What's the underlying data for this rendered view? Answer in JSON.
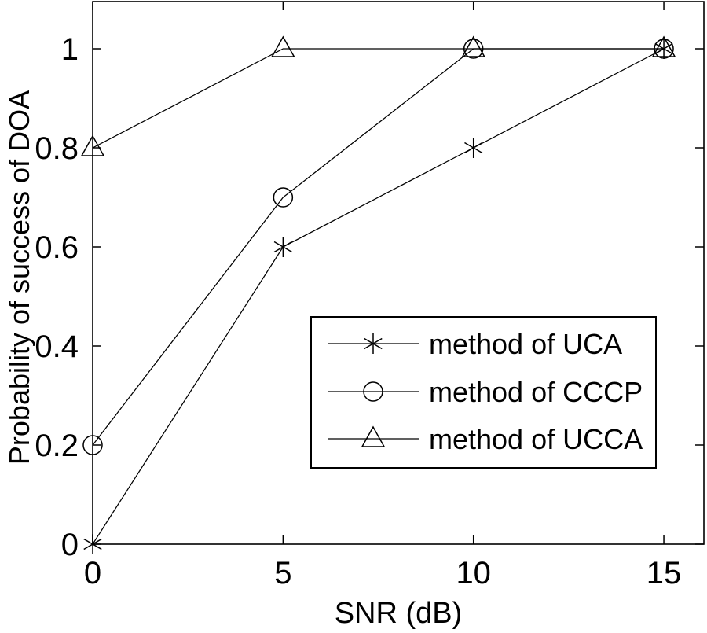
{
  "chart_data": {
    "type": "line",
    "title": "",
    "xlabel": "SNR (dB)",
    "ylabel": "Probability of success of DOA",
    "x": [
      0,
      5,
      10,
      15
    ],
    "x_tick_labels": [
      "0",
      "5",
      "10",
      "15"
    ],
    "y_ticks": [
      0,
      0.2,
      0.4,
      0.6,
      0.8,
      1
    ],
    "y_tick_labels": [
      "0",
      "0.2",
      "0.4",
      "0.6",
      "0.8",
      "1"
    ],
    "xlim": [
      0,
      16
    ],
    "ylim": [
      0,
      1.1
    ],
    "grid": false,
    "legend_position": "inside-lower-right",
    "series": [
      {
        "name": "method of UCA",
        "marker": "asterisk",
        "line_style": "solid",
        "color": "#000000",
        "values": [
          0.0,
          0.6,
          0.8,
          1.0
        ]
      },
      {
        "name": "method of CCCP",
        "marker": "circle",
        "line_style": "solid",
        "color": "#000000",
        "values": [
          0.2,
          0.7,
          1.0,
          1.0
        ]
      },
      {
        "name": "method of UCCA",
        "marker": "triangle",
        "line_style": "solid",
        "color": "#000000",
        "values": [
          0.8,
          1.0,
          1.0,
          1.0
        ]
      }
    ],
    "colors": {
      "background": "#ffffff",
      "axis": "#000000"
    }
  }
}
